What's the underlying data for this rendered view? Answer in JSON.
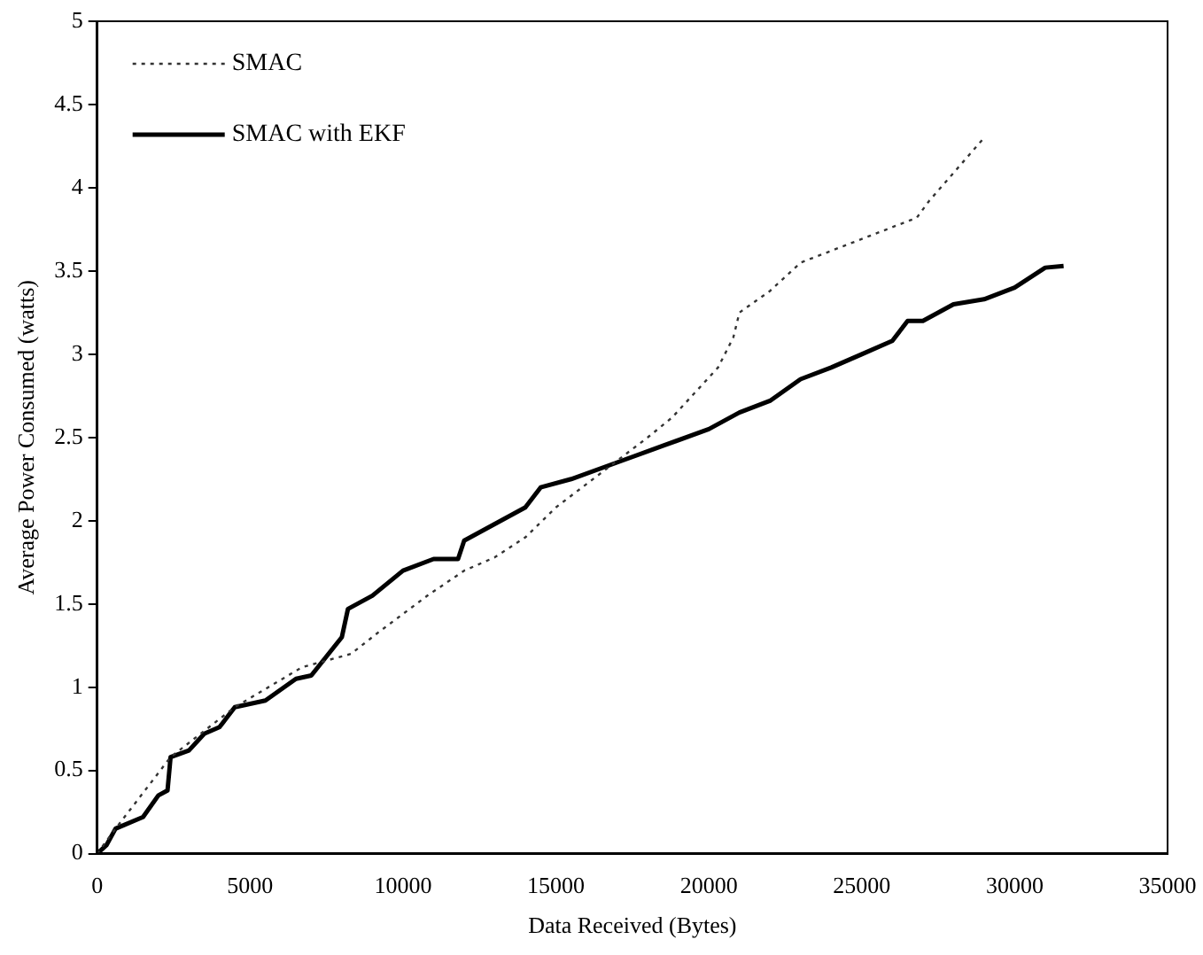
{
  "chart_data": {
    "type": "line",
    "xlabel": "Data Received (Bytes)",
    "ylabel": "Average Power Consumed (watts)",
    "xlim": [
      0,
      35000
    ],
    "xticks": [
      0,
      5000,
      10000,
      15000,
      20000,
      25000,
      30000,
      35000
    ],
    "ylim": [
      0,
      5
    ],
    "yticks": [
      0,
      0.5,
      1,
      1.5,
      2,
      2.5,
      3,
      3.5,
      4,
      4.5,
      5
    ],
    "grid": false,
    "legend": "top left",
    "marker": "none",
    "series": [
      {
        "name": "SMAC",
        "color": "#333333",
        "line_style": "dotted",
        "x": [
          0,
          600,
          2400,
          4500,
          6700,
          8300,
          9200,
          10800,
          12000,
          13000,
          14000,
          15000,
          18000,
          18800,
          20300,
          20800,
          21000,
          22000,
          23000,
          26800,
          27200,
          29000
        ],
        "values": [
          0,
          0.15,
          0.58,
          0.88,
          1.12,
          1.2,
          1.33,
          1.55,
          1.7,
          1.78,
          1.9,
          2.08,
          2.5,
          2.62,
          2.92,
          3.1,
          3.25,
          3.38,
          3.55,
          3.82,
          3.92,
          4.3
        ]
      },
      {
        "name": "SMAC with EKF",
        "color": "#000000",
        "line_style": "solid",
        "x": [
          0,
          300,
          600,
          1500,
          2000,
          2300,
          2400,
          3000,
          3500,
          4000,
          4500,
          5500,
          6500,
          7000,
          8000,
          8200,
          9000,
          10000,
          11000,
          11800,
          12000,
          13000,
          14000,
          14500,
          15500,
          17000,
          18500,
          20000,
          21000,
          22000,
          23000,
          24000,
          25000,
          26000,
          26500,
          27000,
          28000,
          29000,
          30000,
          31000,
          31600
        ],
        "values": [
          0,
          0.05,
          0.15,
          0.22,
          0.35,
          0.38,
          0.58,
          0.62,
          0.72,
          0.76,
          0.88,
          0.92,
          1.05,
          1.07,
          1.3,
          1.47,
          1.55,
          1.7,
          1.77,
          1.77,
          1.88,
          1.98,
          2.08,
          2.2,
          2.25,
          2.35,
          2.45,
          2.55,
          2.65,
          2.72,
          2.85,
          2.92,
          3.0,
          3.08,
          3.2,
          3.2,
          3.3,
          3.33,
          3.4,
          3.52,
          3.53
        ]
      }
    ]
  }
}
